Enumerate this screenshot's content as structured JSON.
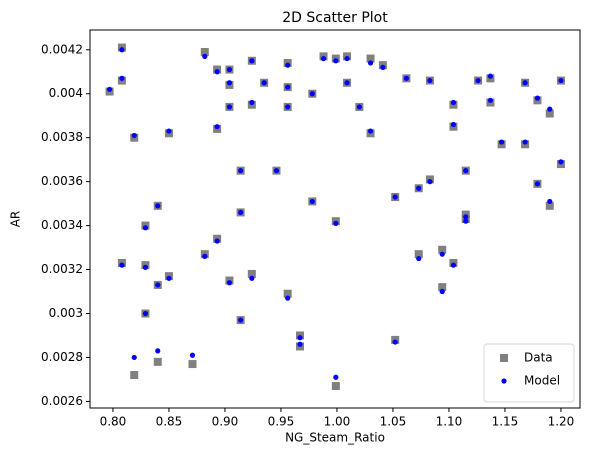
{
  "chart_data": {
    "type": "scatter",
    "title": "2D Scatter Plot",
    "x_label": "NG_Steam_Ratio",
    "y_label": "AR",
    "x": [
      0.797,
      0.808,
      0.808,
      0.808,
      0.819,
      0.819,
      0.829,
      0.829,
      0.829,
      0.84,
      0.84,
      0.84,
      0.85,
      0.85,
      0.871,
      0.882,
      0.882,
      0.893,
      0.893,
      0.893,
      0.904,
      0.904,
      0.904,
      0.904,
      0.914,
      0.914,
      0.914,
      0.924,
      0.924,
      0.924,
      0.935,
      0.946,
      0.956,
      0.956,
      0.956,
      0.956,
      0.967,
      0.967,
      0.978,
      0.978,
      0.988,
      0.999,
      0.999,
      0.999,
      1.009,
      1.009,
      1.02,
      1.03,
      1.03,
      1.041,
      1.052,
      1.052,
      1.062,
      1.073,
      1.073,
      1.083,
      1.083,
      1.094,
      1.094,
      1.104,
      1.104,
      1.104,
      1.115,
      1.115,
      1.115,
      1.126,
      1.137,
      1.137,
      1.147,
      1.168,
      1.168,
      1.179,
      1.179,
      1.19,
      1.19,
      1.2,
      1.2
    ],
    "series": [
      {
        "name": "Data",
        "color": "#808080",
        "marker": "square",
        "values": [
          0.00401,
          0.00421,
          0.00406,
          0.00323,
          0.0038,
          0.00272,
          0.0034,
          0.00322,
          0.003,
          0.00349,
          0.00313,
          0.00278,
          0.00382,
          0.00317,
          0.00277,
          0.00419,
          0.00327,
          0.00411,
          0.00384,
          0.00334,
          0.00411,
          0.00404,
          0.00394,
          0.00315,
          0.00365,
          0.00346,
          0.00297,
          0.00415,
          0.00395,
          0.00318,
          0.00405,
          0.00365,
          0.00414,
          0.00403,
          0.00394,
          0.00309,
          0.0029,
          0.00285,
          0.004,
          0.00351,
          0.00417,
          0.00416,
          0.00342,
          0.00267,
          0.00417,
          0.00405,
          0.00394,
          0.00416,
          0.00382,
          0.00413,
          0.00353,
          0.00288,
          0.00407,
          0.00357,
          0.00327,
          0.00406,
          0.00361,
          0.00329,
          0.00312,
          0.00395,
          0.00385,
          0.00323,
          0.00365,
          0.00345,
          0.00343,
          0.00406,
          0.00407,
          0.00396,
          0.00377,
          0.00405,
          0.00377,
          0.00397,
          0.00359,
          0.00391,
          0.00349,
          0.00406,
          0.00368
        ]
      },
      {
        "name": "Model",
        "color": "#0000ff",
        "marker": "circle",
        "values": [
          0.00402,
          0.0042,
          0.00407,
          0.00322,
          0.00381,
          0.0028,
          0.00339,
          0.00321,
          0.003,
          0.00349,
          0.00313,
          0.00283,
          0.00383,
          0.00316,
          0.00281,
          0.00417,
          0.00326,
          0.0041,
          0.00385,
          0.00333,
          0.00411,
          0.00405,
          0.00394,
          0.00314,
          0.00365,
          0.00346,
          0.00297,
          0.00415,
          0.00396,
          0.00316,
          0.00405,
          0.00365,
          0.00413,
          0.00403,
          0.00394,
          0.00307,
          0.00289,
          0.00286,
          0.004,
          0.00351,
          0.00416,
          0.00415,
          0.00341,
          0.00271,
          0.00416,
          0.00405,
          0.00394,
          0.00414,
          0.00383,
          0.00412,
          0.00353,
          0.00287,
          0.00407,
          0.00357,
          0.00325,
          0.00406,
          0.0036,
          0.00327,
          0.0031,
          0.00396,
          0.00386,
          0.00322,
          0.00365,
          0.00344,
          0.00342,
          0.00406,
          0.00408,
          0.00397,
          0.00378,
          0.00405,
          0.00378,
          0.00398,
          0.00359,
          0.00393,
          0.00351,
          0.00406,
          0.00369
        ]
      }
    ],
    "xlim": [
      0.7795,
      1.217
    ],
    "ylim": [
      0.00257,
      0.00429
    ],
    "xticks": [
      {
        "value": 0.8,
        "label": "0.80"
      },
      0.85,
      {
        "value": 0.9,
        "label": "0.90"
      },
      0.95,
      {
        "value": 1.0,
        "label": "1.00"
      },
      1.05,
      {
        "value": 1.1,
        "label": "1.10"
      },
      1.15,
      {
        "value": 1.2,
        "label": "1.20"
      }
    ],
    "yticks": [
      0.0026,
      0.0028,
      0.003,
      0.0032,
      0.0034,
      0.0036,
      0.0038,
      0.004,
      0.0042
    ],
    "legend": "lower right",
    "grid": false
  }
}
